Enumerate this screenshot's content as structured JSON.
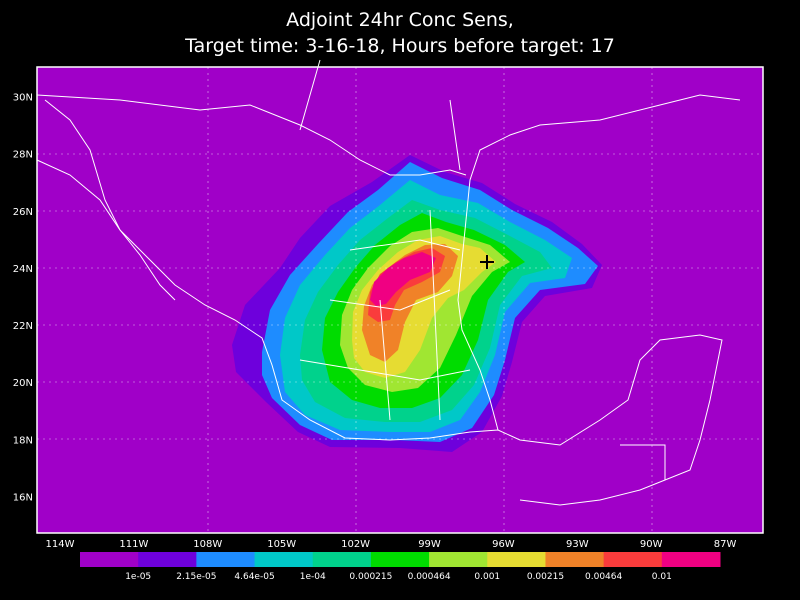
{
  "title": [
    "Adjoint 24hr Conc Sens,",
    "Target time: 3-16-18, Hours before target: 17"
  ],
  "lat_labels": [
    "30N",
    "28N",
    "26N",
    "24N",
    "22N",
    "20N",
    "18N",
    "16N"
  ],
  "lon_labels": [
    "114W",
    "111W",
    "108W",
    "105W",
    "102W",
    "99W",
    "96W",
    "93W",
    "90W",
    "87W"
  ],
  "colorbar": {
    "colors": [
      "#a000c8",
      "#6e00dc",
      "#1e8cff",
      "#00c8c8",
      "#00d28c",
      "#00dc00",
      "#a0e632",
      "#e6dc32",
      "#f08228",
      "#fa3c3c",
      "#f00082"
    ],
    "labels": [
      "1e-05",
      "2.15e-05",
      "4.64e-05",
      "1e-04",
      "0.000215",
      "0.000464",
      "0.001",
      "0.00215",
      "0.00464",
      "0.01"
    ]
  }
}
